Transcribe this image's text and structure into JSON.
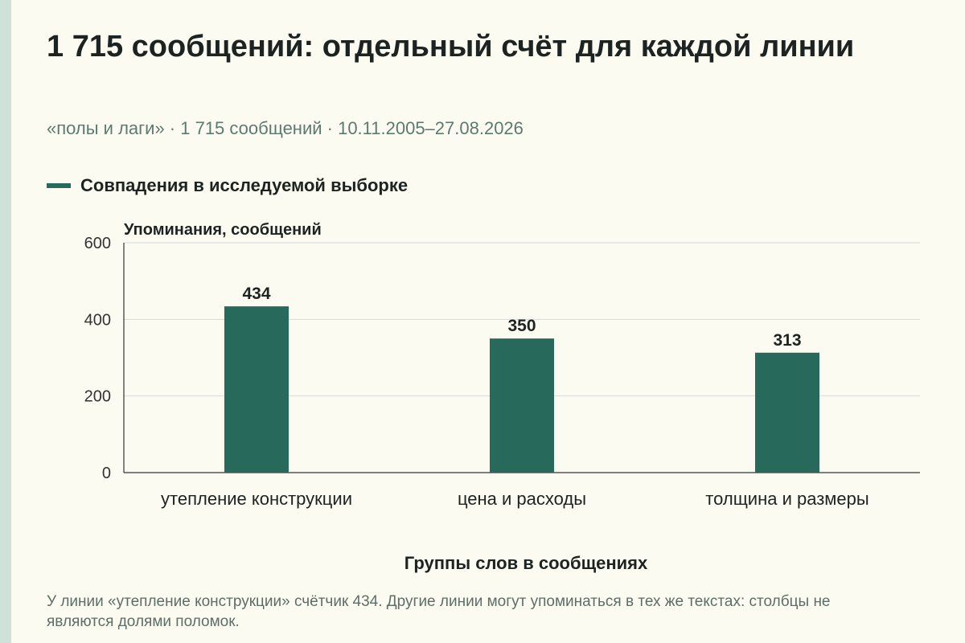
{
  "title": "1 715 сообщений: отдельный счёт для каждой линии",
  "subtitle": "«полы и лаги» · 1 715 сообщений · 10.11.2005–27.08.2026",
  "note": "У линии «утепление конструкции» счётчик 434. Другие линии могут упоминаться в тех же текстах: столбцы не являются долями поломок.",
  "colors": {
    "bar": "#27695a",
    "background": "#fcfbf2",
    "grid": "#d9d9d9",
    "axis": "#333333"
  },
  "chart_data": {
    "type": "bar",
    "categories": [
      "утепление конструкции",
      "цена и расходы",
      "толщина и размеры"
    ],
    "series": [
      {
        "name": "Совпадения в исследуемой выборке",
        "values": [
          434,
          350,
          313
        ]
      }
    ],
    "data_labels": [
      "434",
      "350",
      "313"
    ],
    "ylabel": "Упоминания, сообщений",
    "xlabel": "Группы слов в сообщениях",
    "ylim": [
      0,
      600
    ],
    "yticks": [
      0,
      200,
      400,
      600
    ],
    "grid": true,
    "legend_position": "top-left"
  }
}
